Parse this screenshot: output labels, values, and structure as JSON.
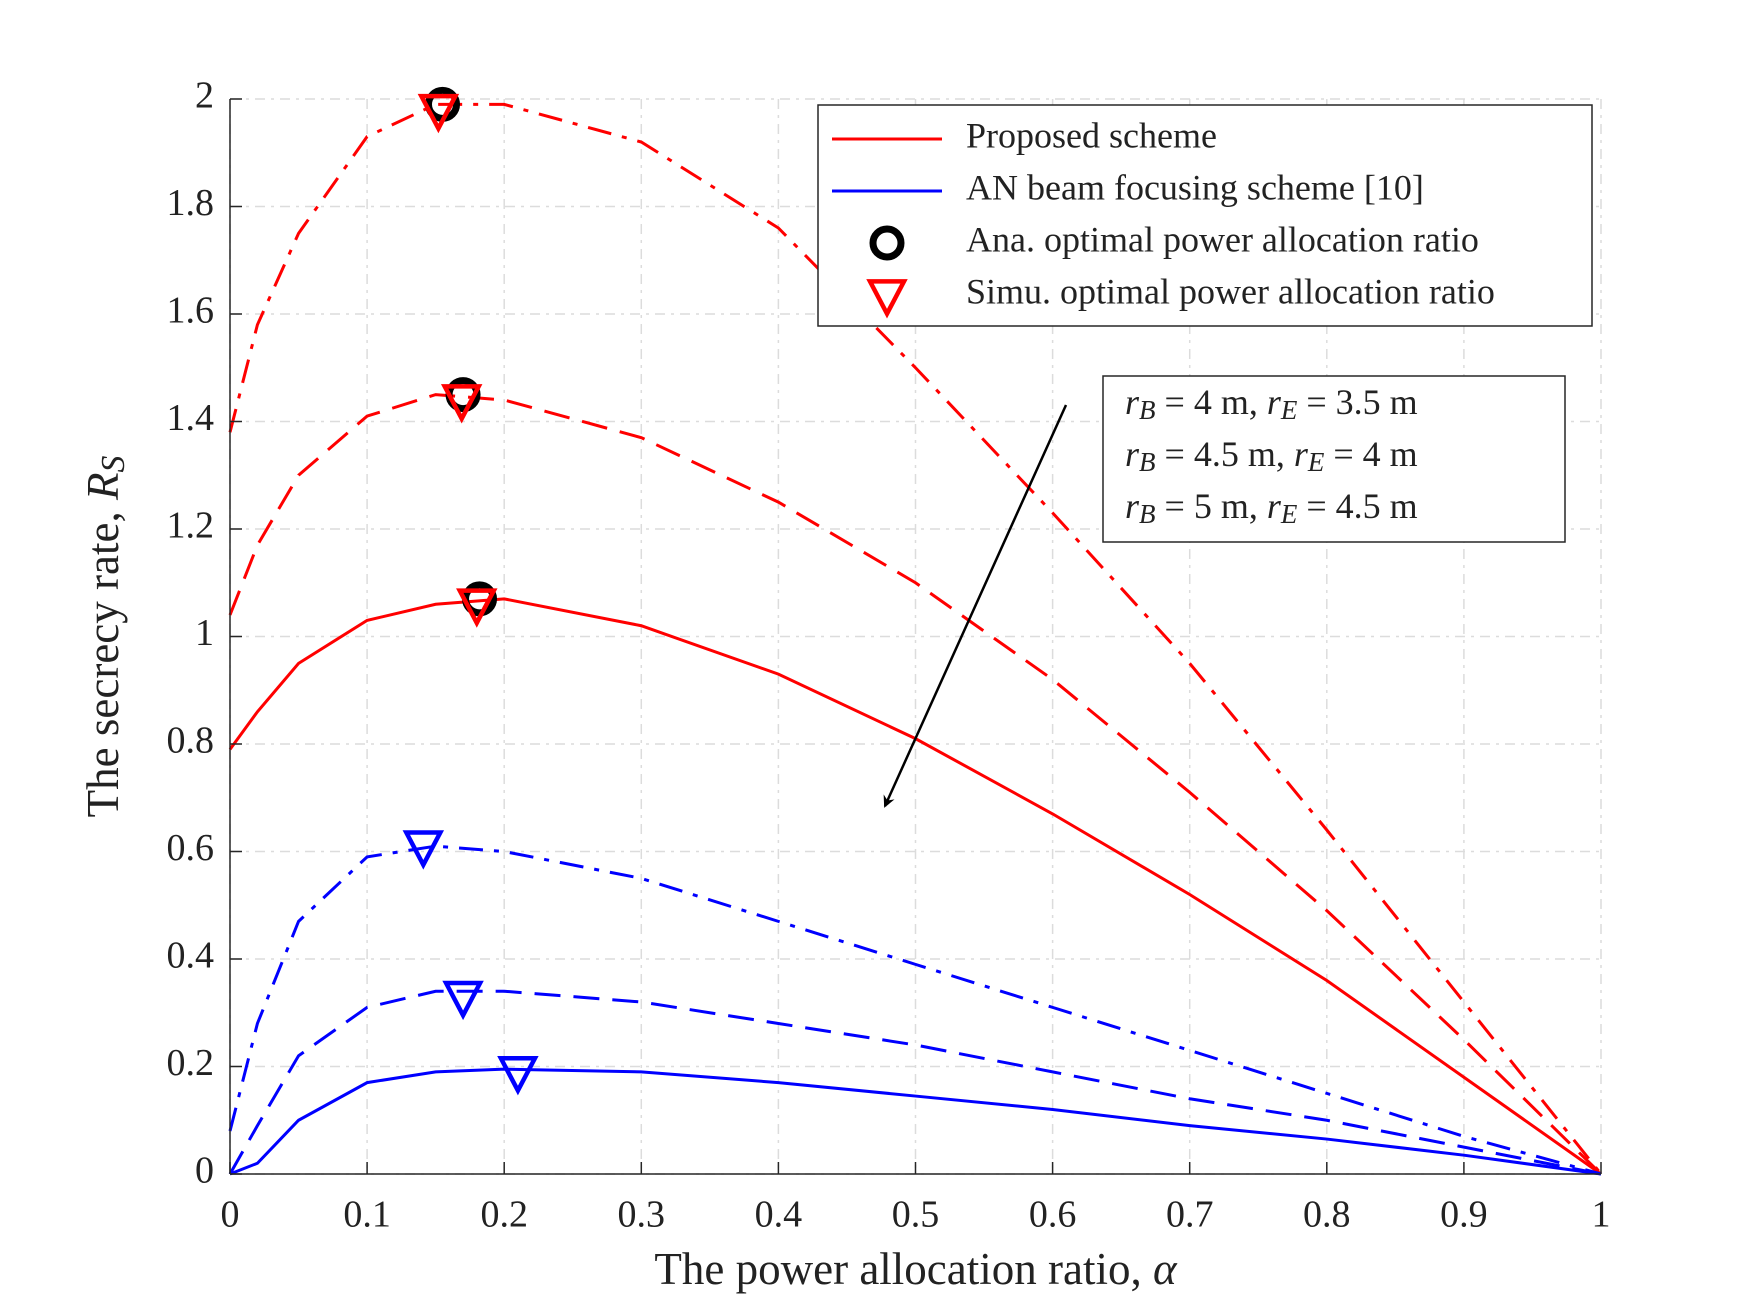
{
  "chart_data": {
    "type": "line",
    "xlabel": "The power allocation ratio, α",
    "ylabel": "The secrecy rate, RS",
    "x": [
      0,
      0.02,
      0.05,
      0.1,
      0.15,
      0.2,
      0.3,
      0.4,
      0.5,
      0.6,
      0.7,
      0.8,
      0.9,
      1
    ],
    "series": [
      {
        "name": "Proposed scheme",
        "color": "#ff0000",
        "curves": [
          {
            "dash": "dashdot",
            "values": [
              1.38,
              1.58,
              1.75,
              1.93,
              1.99,
              1.99,
              1.92,
              1.76,
              1.5,
              1.23,
              0.95,
              0.64,
              0.32,
              0
            ]
          },
          {
            "dash": "dashed",
            "values": [
              1.04,
              1.17,
              1.3,
              1.41,
              1.45,
              1.44,
              1.37,
              1.25,
              1.1,
              0.92,
              0.71,
              0.49,
              0.25,
              0
            ]
          },
          {
            "dash": "solid",
            "values": [
              0.79,
              0.86,
              0.95,
              1.03,
              1.06,
              1.07,
              1.02,
              0.93,
              0.81,
              0.67,
              0.52,
              0.36,
              0.18,
              0
            ]
          }
        ]
      },
      {
        "name": "AN beam focusing scheme [10]",
        "color": "#0000ff",
        "curves": [
          {
            "dash": "dashdot",
            "values": [
              0.08,
              0.28,
              0.47,
              0.59,
              0.61,
              0.6,
              0.55,
              0.47,
              0.39,
              0.31,
              0.23,
              0.15,
              0.07,
              0
            ]
          },
          {
            "dash": "dashed",
            "values": [
              0,
              0.09,
              0.22,
              0.31,
              0.34,
              0.34,
              0.32,
              0.28,
              0.24,
              0.19,
              0.14,
              0.1,
              0.05,
              0
            ]
          },
          {
            "dash": "solid",
            "values": [
              0,
              0.02,
              0.1,
              0.17,
              0.19,
              0.195,
              0.19,
              0.17,
              0.145,
              0.12,
              0.09,
              0.065,
              0.035,
              0
            ]
          }
        ]
      }
    ],
    "markers": [
      {
        "name": "Ana. optimal power allocation ratio",
        "shape": "circle",
        "color": "#000000",
        "x": [
          0.155,
          0.17,
          0.182
        ],
        "y": [
          1.99,
          1.45,
          1.07
        ],
        "colors": [
          "#000000",
          "#000000",
          "#000000"
        ]
      },
      {
        "name": "Simu. optimal power allocation ratio",
        "shape": "triangle-down",
        "color": "#ff0000",
        "x": [
          0.152,
          0.169,
          0.18,
          0.141,
          0.17,
          0.21
        ],
        "y": [
          1.98,
          1.44,
          1.06,
          0.61,
          0.33,
          0.19
        ],
        "colors": [
          "#ff0000",
          "#ff0000",
          "#ff0000",
          "#0000ff",
          "#0000ff",
          "#0000ff"
        ]
      }
    ],
    "cases": [
      "rB = 4 m, rE = 3.5 m",
      "rB = 4.5 m, rE = 4 m",
      "rB = 5 m, rE = 4.5 m"
    ],
    "xlim": [
      0,
      1
    ],
    "ylim": [
      0,
      2
    ],
    "xticks": [
      0,
      0.1,
      0.2,
      0.3,
      0.4,
      0.5,
      0.6,
      0.7,
      0.8,
      0.9,
      1
    ],
    "yticks": [
      0,
      0.2,
      0.4,
      0.6,
      0.8,
      1,
      1.2,
      1.4,
      1.6,
      1.8,
      2
    ],
    "grid": true,
    "legend": "upper right"
  }
}
